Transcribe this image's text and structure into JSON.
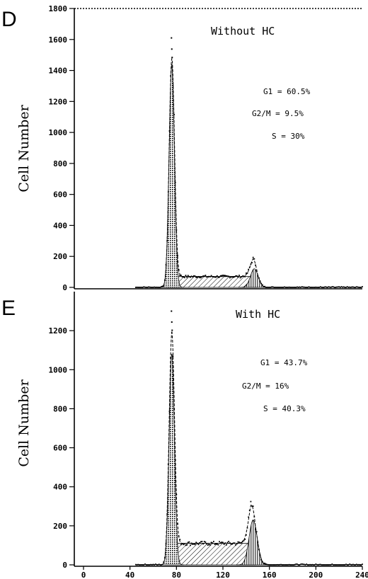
{
  "chart_data": [
    {
      "type": "area",
      "panel_label": "D",
      "title": "Without HC",
      "ylabel": "Cell Number",
      "xlim": [
        0,
        240
      ],
      "ylim": [
        0,
        1800
      ],
      "yticks": [
        0,
        200,
        400,
        600,
        800,
        1000,
        1200,
        1400,
        1600,
        1800
      ],
      "stats": [
        "G1 = 60.5%",
        "G2/M = 9.5%",
        "S = 30%"
      ],
      "g1": {
        "center": 76,
        "sigma": 2.3,
        "height": 1430
      },
      "s": {
        "start": 72,
        "end": 150,
        "level": 70
      },
      "g2m": {
        "center": 147,
        "sigma": 3.3,
        "height": 120
      },
      "max_point": 1610
    },
    {
      "type": "area",
      "panel_label": "E",
      "title": "With HC",
      "ylabel": "Cell Number",
      "xlim": [
        0,
        240
      ],
      "ylim": [
        0,
        1400
      ],
      "xticks": [
        0,
        40,
        80,
        120,
        160,
        200,
        240
      ],
      "yticks": [
        0,
        200,
        400,
        600,
        800,
        1000,
        1200
      ],
      "stats": [
        "G1 = 43.7%",
        "G2/M = 16%",
        "S = 40.3%"
      ],
      "g1": {
        "center": 76,
        "sigma": 2.3,
        "height": 1080
      },
      "s": {
        "start": 70,
        "end": 148,
        "level": 110
      },
      "g2m": {
        "center": 146,
        "sigma": 3.5,
        "height": 230
      },
      "max_point": 1300
    }
  ]
}
